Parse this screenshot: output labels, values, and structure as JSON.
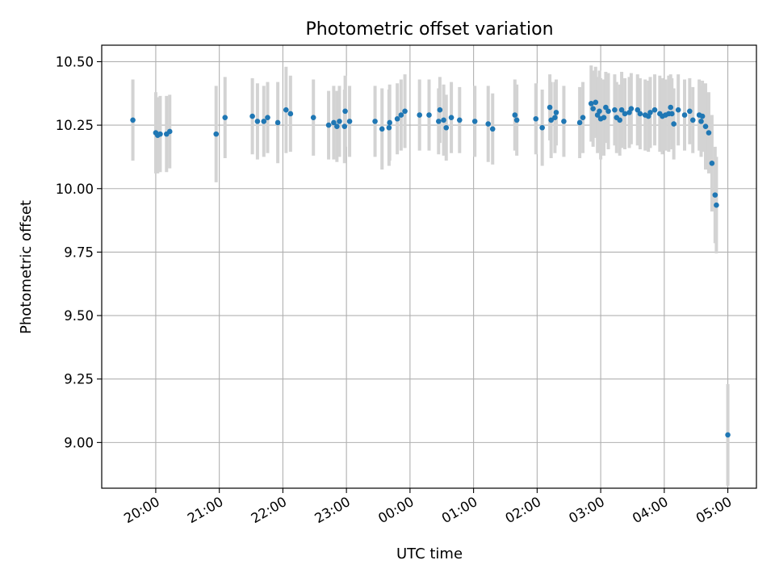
{
  "chart_data": {
    "type": "scatter",
    "title": "Photometric offset variation",
    "xlabel": "UTC time",
    "ylabel": "Photometric offset",
    "xlim": [
      -0.85,
      9.45
    ],
    "ylim": [
      8.82,
      10.565
    ],
    "grid": true,
    "x_unit": "hours after 20:00 UTC",
    "x_ticks": [
      {
        "value": 0,
        "label": "20:00"
      },
      {
        "value": 1,
        "label": "21:00"
      },
      {
        "value": 2,
        "label": "22:00"
      },
      {
        "value": 3,
        "label": "23:00"
      },
      {
        "value": 4,
        "label": "00:00"
      },
      {
        "value": 5,
        "label": "01:00"
      },
      {
        "value": 6,
        "label": "02:00"
      },
      {
        "value": 7,
        "label": "03:00"
      },
      {
        "value": 8,
        "label": "04:00"
      },
      {
        "value": 9,
        "label": "05:00"
      }
    ],
    "y_ticks": [
      {
        "value": 9.0,
        "label": "9.00"
      },
      {
        "value": 9.25,
        "label": "9.25"
      },
      {
        "value": 9.5,
        "label": "9.50"
      },
      {
        "value": 9.75,
        "label": "9.75"
      },
      {
        "value": 10.0,
        "label": "10.00"
      },
      {
        "value": 10.25,
        "label": "10.25"
      },
      {
        "value": 10.5,
        "label": "10.50"
      }
    ],
    "colors": {
      "points": "#1f77b4",
      "error_bars": "#d3d3d3",
      "grid": "#b0b0b0"
    },
    "series": [
      {
        "name": "Photometric offset",
        "points": [
          [
            -0.36,
            10.27,
            0.16
          ],
          [
            0.0,
            10.22,
            0.16
          ],
          [
            0.03,
            10.21,
            0.15
          ],
          [
            0.07,
            10.215,
            0.15
          ],
          [
            0.17,
            10.215,
            0.15
          ],
          [
            0.22,
            10.225,
            0.145
          ],
          [
            0.95,
            10.215,
            0.19
          ],
          [
            1.09,
            10.28,
            0.16
          ],
          [
            1.52,
            10.285,
            0.15
          ],
          [
            1.6,
            10.265,
            0.15
          ],
          [
            1.7,
            10.265,
            0.14
          ],
          [
            1.76,
            10.28,
            0.14
          ],
          [
            1.92,
            10.26,
            0.16
          ],
          [
            2.05,
            10.31,
            0.17
          ],
          [
            2.12,
            10.295,
            0.15
          ],
          [
            2.48,
            10.28,
            0.15
          ],
          [
            2.72,
            10.25,
            0.135
          ],
          [
            2.8,
            10.26,
            0.145
          ],
          [
            2.85,
            10.245,
            0.14
          ],
          [
            2.89,
            10.265,
            0.14
          ],
          [
            2.97,
            10.245,
            0.145
          ],
          [
            2.98,
            10.305,
            0.14
          ],
          [
            3.05,
            10.265,
            0.14
          ],
          [
            3.45,
            10.265,
            0.14
          ],
          [
            3.56,
            10.235,
            0.16
          ],
          [
            3.67,
            10.24,
            0.15
          ],
          [
            3.68,
            10.26,
            0.15
          ],
          [
            3.8,
            10.275,
            0.14
          ],
          [
            3.86,
            10.29,
            0.14
          ],
          [
            3.92,
            10.305,
            0.145
          ],
          [
            4.15,
            10.29,
            0.14
          ],
          [
            4.3,
            10.29,
            0.14
          ],
          [
            4.45,
            10.265,
            0.13
          ],
          [
            4.47,
            10.31,
            0.13
          ],
          [
            4.53,
            10.27,
            0.14
          ],
          [
            4.57,
            10.24,
            0.13
          ],
          [
            4.65,
            10.28,
            0.14
          ],
          [
            4.78,
            10.27,
            0.13
          ],
          [
            5.02,
            10.265,
            0.14
          ],
          [
            5.23,
            10.255,
            0.15
          ],
          [
            5.3,
            10.235,
            0.14
          ],
          [
            5.65,
            10.29,
            0.14
          ],
          [
            5.68,
            10.27,
            0.14
          ],
          [
            5.98,
            10.275,
            0.14
          ],
          [
            6.08,
            10.24,
            0.15
          ],
          [
            6.2,
            10.32,
            0.13
          ],
          [
            6.22,
            10.27,
            0.15
          ],
          [
            6.28,
            10.28,
            0.14
          ],
          [
            6.3,
            10.3,
            0.13
          ],
          [
            6.42,
            10.265,
            0.14
          ],
          [
            6.67,
            10.26,
            0.14
          ],
          [
            6.72,
            10.28,
            0.14
          ],
          [
            6.85,
            10.335,
            0.15
          ],
          [
            6.88,
            10.315,
            0.15
          ],
          [
            6.92,
            10.34,
            0.14
          ],
          [
            6.95,
            10.29,
            0.15
          ],
          [
            6.98,
            10.305,
            0.16
          ],
          [
            7.0,
            10.275,
            0.16
          ],
          [
            7.05,
            10.28,
            0.15
          ],
          [
            7.08,
            10.32,
            0.14
          ],
          [
            7.12,
            10.305,
            0.15
          ],
          [
            7.22,
            10.31,
            0.14
          ],
          [
            7.25,
            10.28,
            0.14
          ],
          [
            7.3,
            10.27,
            0.14
          ],
          [
            7.33,
            10.31,
            0.15
          ],
          [
            7.38,
            10.295,
            0.14
          ],
          [
            7.45,
            10.3,
            0.14
          ],
          [
            7.48,
            10.315,
            0.14
          ],
          [
            7.58,
            10.31,
            0.14
          ],
          [
            7.62,
            10.295,
            0.14
          ],
          [
            7.7,
            10.29,
            0.14
          ],
          [
            7.75,
            10.285,
            0.14
          ],
          [
            7.78,
            10.3,
            0.14
          ],
          [
            7.85,
            10.31,
            0.14
          ],
          [
            7.93,
            10.295,
            0.15
          ],
          [
            7.97,
            10.285,
            0.15
          ],
          [
            8.02,
            10.29,
            0.14
          ],
          [
            8.07,
            10.295,
            0.15
          ],
          [
            8.1,
            10.32,
            0.13
          ],
          [
            8.12,
            10.295,
            0.14
          ],
          [
            8.15,
            10.255,
            0.14
          ],
          [
            8.22,
            10.31,
            0.14
          ],
          [
            8.32,
            10.29,
            0.14
          ],
          [
            8.4,
            10.305,
            0.13
          ],
          [
            8.45,
            10.27,
            0.13
          ],
          [
            8.55,
            10.29,
            0.14
          ],
          [
            8.58,
            10.265,
            0.14
          ],
          [
            8.6,
            10.285,
            0.14
          ],
          [
            8.65,
            10.245,
            0.17
          ],
          [
            8.7,
            10.22,
            0.16
          ],
          [
            8.75,
            10.1,
            0.19
          ],
          [
            8.8,
            9.975,
            0.19
          ],
          [
            8.82,
            9.935,
            0.19
          ],
          [
            9.0,
            9.03,
            0.2
          ]
        ]
      }
    ]
  }
}
